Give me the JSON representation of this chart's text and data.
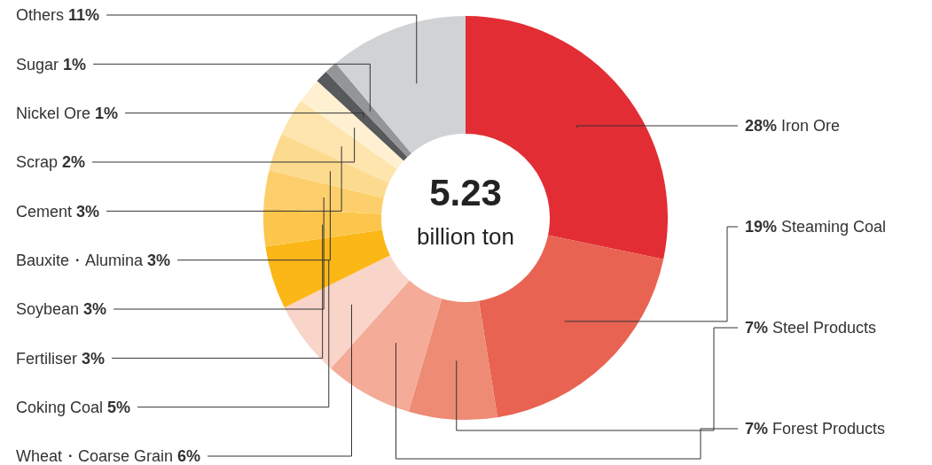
{
  "chart_data": {
    "type": "donut",
    "categories": [
      "Iron Ore",
      "Steaming Coal",
      "Steel Products",
      "Forest Products",
      "Wheat・Coarse Grain",
      "Coking Coal",
      "Fertiliser",
      "Soybean",
      "Bauxite・Alumina",
      "Cement",
      "Scrap",
      "Nickel Ore",
      "Sugar",
      "Others"
    ],
    "values": [
      28,
      19,
      7,
      7,
      6,
      5,
      3,
      3,
      3,
      3,
      2,
      1,
      1,
      11
    ],
    "value_labels": [
      "28%",
      "19%",
      "7%",
      "7%",
      "6%",
      "5%",
      "3%",
      "3%",
      "3%",
      "3%",
      "2%",
      "1%",
      "1%",
      "11%"
    ],
    "colors": [
      "#e32d35",
      "#e96352",
      "#ee8b74",
      "#f4ab97",
      "#f9d4c8",
      "#fbb716",
      "#fcc64c",
      "#fdcf6c",
      "#fddb8e",
      "#fee4ad",
      "#fff0d2",
      "#58595b",
      "#939598",
      "#d1d2d4"
    ],
    "annotations": [
      "5.23",
      "billion ton"
    ]
  }
}
